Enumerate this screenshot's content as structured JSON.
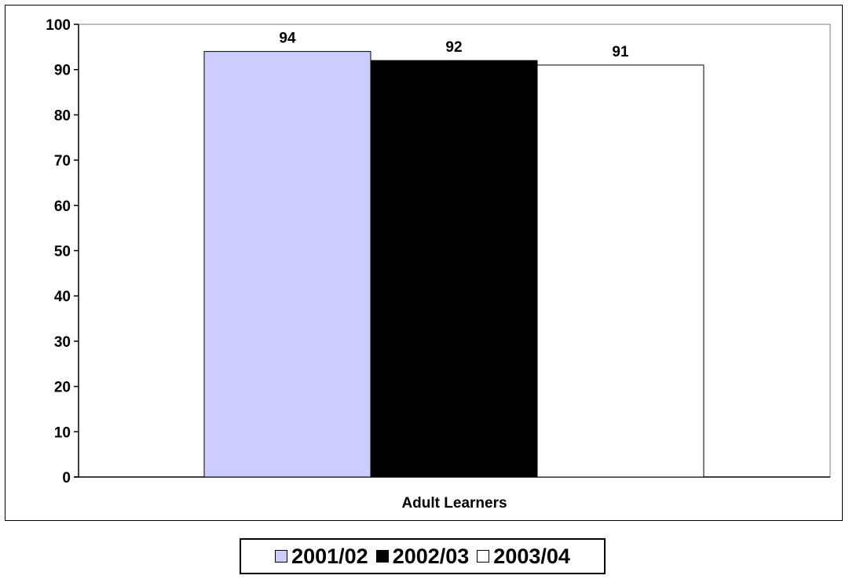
{
  "chart_data": {
    "type": "bar",
    "categories": [
      "Adult Learners"
    ],
    "series": [
      {
        "name": "2001/02",
        "values": [
          94
        ],
        "color": "#ccccff"
      },
      {
        "name": "2002/03",
        "values": [
          92
        ],
        "color": "#000000"
      },
      {
        "name": "2003/04",
        "values": [
          91
        ],
        "color": "#ffffff"
      }
    ],
    "title": "",
    "xlabel": "",
    "ylabel": "",
    "ylim": [
      0,
      100
    ],
    "yticks": [
      "0",
      "10",
      "20",
      "30",
      "40",
      "50",
      "60",
      "70",
      "80",
      "90",
      "100"
    ],
    "grid": false,
    "legend": "bottom",
    "data_labels": [
      "94",
      "92",
      "91"
    ]
  }
}
